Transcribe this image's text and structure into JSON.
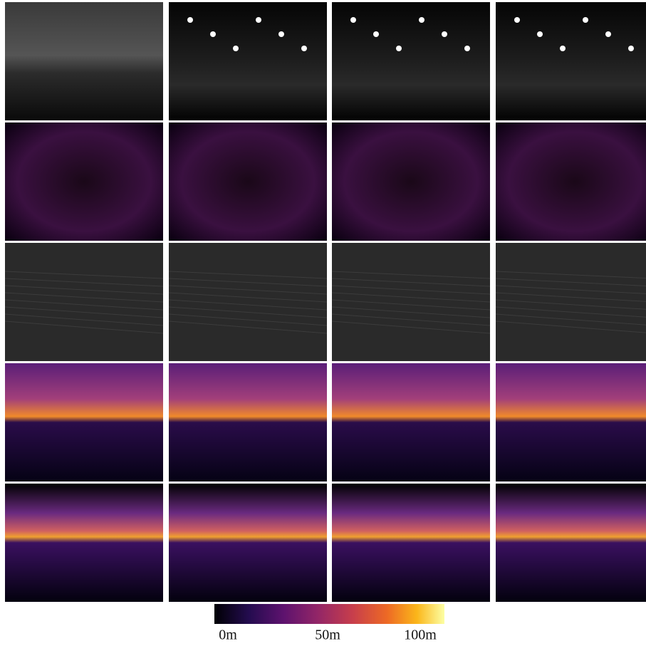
{
  "colorbar": {
    "labels": [
      "0m",
      "50m",
      "100m"
    ]
  }
}
